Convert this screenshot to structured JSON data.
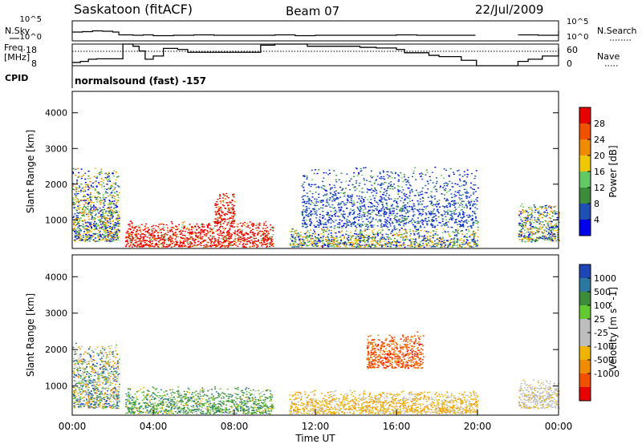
{
  "header": {
    "station": "Saskatoon (fitACF)",
    "beam": "Beam 07",
    "date": "22/Jul/2009"
  },
  "left_labels": {
    "nsky": "N.Sky",
    "freq_line1": "Freq.",
    "freq_line2": "[MHz]",
    "cpid": "CPID"
  },
  "right_labels": {
    "nsearch": "N.Search",
    "nave": "Nave"
  },
  "cpid_text": "normalsound (fast) -157",
  "colors": {
    "power": [
      "#0000ee",
      "#1e50b4",
      "#3c8c3c",
      "#64c864",
      "#f0c800",
      "#f08c00",
      "#f05000",
      "#e60000"
    ],
    "velocity": [
      "#1e46b4",
      "#2d78a0",
      "#3c8c3c",
      "#64c832",
      "#bebebe",
      "#bebebe",
      "#f0b400",
      "#f08c00",
      "#f05000",
      "#e60000"
    ]
  },
  "chart_data": [
    {
      "type": "line",
      "panel": "noise",
      "ylabel": "N.Sky",
      "y2label": "N.Search",
      "yticks": [
        "10^5",
        "10^0"
      ],
      "y2ticks": [
        "10^5",
        "10^0"
      ],
      "xlim": [
        0,
        24
      ],
      "ylim": [
        0,
        5
      ],
      "series": [
        {
          "x": [
            0,
            0.5,
            1,
            1.5,
            2,
            2.3,
            2.6,
            3,
            3.5,
            4,
            5,
            6,
            7,
            8,
            9,
            10,
            11,
            12,
            13,
            14,
            15,
            16,
            17,
            18,
            19,
            19.9,
            20,
            21.9,
            22,
            23,
            24
          ],
          "values": [
            2.2,
            2.3,
            2.5,
            2.4,
            2.2,
            1.5,
            1.5,
            1.4,
            1.5,
            1.3,
            1.4,
            1.5,
            1.4,
            1.4,
            1.4,
            1.5,
            1.3,
            1.4,
            1.4,
            1.4,
            1.4,
            1.5,
            1.4,
            1.4,
            1.4,
            1.4,
            null,
            null,
            1.5,
            1.4,
            2.5
          ]
        }
      ]
    },
    {
      "type": "line",
      "panel": "frequency",
      "ylabel": "Freq. [MHz]",
      "y2label": "Nave",
      "yticks": [
        8,
        18
      ],
      "y2ticks": [
        0,
        60
      ],
      "xlim": [
        0,
        24
      ],
      "ylim": [
        8,
        18
      ],
      "series": [
        {
          "name": "Freq.",
          "x": [
            0,
            0.4,
            0.8,
            1.2,
            2.5,
            3.0,
            3.3,
            3.6,
            4.0,
            4.5,
            5.2,
            5.7,
            9.3,
            10.0,
            10.7,
            11.6,
            14.2,
            15.0,
            16.0,
            16.4,
            17.6,
            18.1,
            19.2,
            19.95,
            22.0,
            22.5,
            23.2,
            24
          ],
          "values": [
            9.5,
            10,
            11,
            11.2,
            18,
            17,
            14.8,
            11,
            12.5,
            16,
            15.5,
            14.2,
            17.5,
            18,
            18,
            17,
            16.5,
            16.2,
            15.5,
            14,
            12.8,
            12.2,
            10.5,
            8,
            10,
            11,
            12.5,
            16
          ]
        },
        {
          "name": "Nave",
          "x": [
            0,
            24
          ],
          "values": [
            40,
            40
          ]
        }
      ]
    },
    {
      "type": "heatmap",
      "panel": "power",
      "ylabel": "Slant Range [km]",
      "yticks": [
        1000,
        2000,
        3000,
        4000
      ],
      "ylim": [
        200,
        4600
      ],
      "xlim": [
        0,
        24
      ],
      "colorbar_label": "Power [dB]",
      "colorbar_ticks": [
        4,
        8,
        12,
        16,
        20,
        24,
        28
      ],
      "regions": [
        {
          "x": [
            0,
            2.3
          ],
          "range": [
            400,
            2500
          ],
          "level": "mixed-low"
        },
        {
          "x": [
            2.6,
            9.9
          ],
          "range": [
            250,
            1000
          ],
          "level": "high"
        },
        {
          "x": [
            7.0,
            8.0
          ],
          "range": [
            900,
            1800
          ],
          "level": "high"
        },
        {
          "x": [
            10.7,
            20.0
          ],
          "range": [
            250,
            800
          ],
          "level": "mixed-low"
        },
        {
          "x": [
            11.3,
            20.0
          ],
          "range": [
            800,
            2500
          ],
          "level": "low"
        },
        {
          "x": [
            22.0,
            24.0
          ],
          "range": [
            400,
            1500
          ],
          "level": "mixed-low"
        }
      ]
    },
    {
      "type": "heatmap",
      "panel": "velocity",
      "ylabel": "Slant Range [km]",
      "xlabel": "Time UT",
      "yticks": [
        1000,
        2000,
        3000,
        4000
      ],
      "xtick_labels": [
        "00:00",
        "04:00",
        "08:00",
        "12:00",
        "16:00",
        "20:00",
        "00:00"
      ],
      "xticks": [
        0,
        4,
        8,
        12,
        16,
        20,
        24
      ],
      "ylim": [
        200,
        4600
      ],
      "xlim": [
        0,
        24
      ],
      "colorbar_label": "Velocity [m s^-1]",
      "colorbar_ticks": [
        1000,
        500,
        100,
        25,
        -25,
        -100,
        -500,
        -1000
      ],
      "regions": [
        {
          "x": [
            0,
            2.3
          ],
          "range": [
            400,
            2200
          ],
          "level": "mixed"
        },
        {
          "x": [
            2.6,
            9.9
          ],
          "range": [
            250,
            1000
          ],
          "level": "green-blue"
        },
        {
          "x": [
            10.7,
            20.0
          ],
          "range": [
            250,
            900
          ],
          "level": "grey-yellow"
        },
        {
          "x": [
            14.5,
            17.3
          ],
          "range": [
            1500,
            2500
          ],
          "level": "orange"
        },
        {
          "x": [
            22.0,
            24.0
          ],
          "range": [
            400,
            1200
          ],
          "level": "grey"
        }
      ]
    }
  ]
}
